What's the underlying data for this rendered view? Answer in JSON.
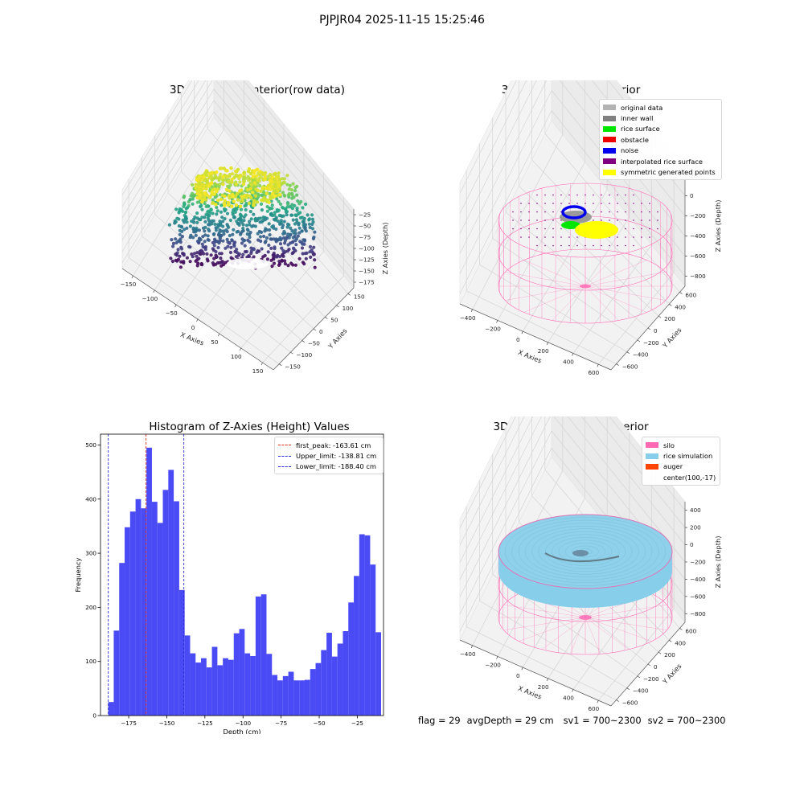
{
  "suptitle": "PJPJR04 2025-11-15 15:25:46",
  "footer": {
    "flag": "flag = 29",
    "avg_depth": "avgDepth = 29 cm",
    "sv1": "sv1 = 700~2300",
    "sv2": "sv2 = 700~2300"
  },
  "colors": {
    "hist_bar": "#4b4bf6",
    "first_peak": "#e0301e",
    "limit_line": "#2a2ad0",
    "silo": "#ff69b4",
    "rice_sim": "#87ceeb",
    "auger": "#ff4500",
    "rice_surface": "#00e600",
    "noise": "#0000ee",
    "symmetric": "#ffff00",
    "interpolated": "#800080"
  },
  "chart_data": [
    {
      "type": "scatter",
      "title": "3D Plot of Silo Interior(row data)",
      "projection": "3d",
      "xlabel": "X Axies",
      "ylabel": "Y Axies",
      "zlabel": "Z Axies (Depth)",
      "x_ticks": [
        "−150",
        "−100",
        "−50",
        "0",
        "50",
        "100",
        "150"
      ],
      "y_ticks": [
        "−150",
        "−100",
        "−50",
        "0",
        "50",
        "100",
        "150"
      ],
      "z_ticks": [
        "−25",
        "−50",
        "−75",
        "−100",
        "−125",
        "−150",
        "−175"
      ],
      "colormap": "viridis"
    },
    {
      "type": "scatter",
      "title": "3D classify of Silo Interior",
      "projection": "3d",
      "xlabel": "X Axies",
      "ylabel": "Y Axies",
      "zlabel": "Z Axies (Depth)",
      "x_ticks": [
        "−400",
        "−200",
        "0",
        "200",
        "400",
        "600"
      ],
      "y_ticks": [
        "−600",
        "−400",
        "−200",
        "0",
        "200",
        "400",
        "600"
      ],
      "z_ticks": [
        "200",
        "0",
        "−200",
        "−400",
        "−600",
        "−800"
      ],
      "legend": [
        {
          "label": "original data",
          "color": "#b3b3b3"
        },
        {
          "label": "inner wall",
          "color": "#808080"
        },
        {
          "label": "rice surface",
          "color": "#00e600"
        },
        {
          "label": "obstacle",
          "color": "#ee0000"
        },
        {
          "label": "noise",
          "color": "#0000ee"
        },
        {
          "label": "interpolated rice surface",
          "color": "#800080"
        },
        {
          "label": "symmetric generated points",
          "color": "#ffff00"
        }
      ],
      "legend_loc": "upper right"
    },
    {
      "type": "bar",
      "title": "Histogram of Z-Axies (Height) Values",
      "xlabel": "Depth (cm)",
      "ylabel": "Frequency",
      "xlim": [
        -193.5,
        -7.8
      ],
      "ylim": [
        0,
        520
      ],
      "x_ticks": [
        -175,
        -150,
        -125,
        -100,
        -75,
        -50,
        -25
      ],
      "x_tick_labels": [
        "−175",
        "−150",
        "−125",
        "−100",
        "−75",
        "−50",
        "−25"
      ],
      "y_ticks": [
        0,
        100,
        200,
        300,
        400,
        500
      ],
      "bin_start": -188.4,
      "bin_width": 3.58,
      "values": [
        25,
        157,
        282,
        348,
        377,
        400,
        383,
        495,
        395,
        356,
        417,
        454,
        396,
        232,
        148,
        115,
        98,
        106,
        89,
        127,
        93,
        106,
        103,
        152,
        160,
        115,
        110,
        220,
        224,
        114,
        75,
        65,
        73,
        81,
        65,
        65,
        66,
        86,
        97,
        121,
        153,
        109,
        133,
        156,
        209,
        258,
        335,
        333,
        279,
        154
      ],
      "vlines": [
        {
          "label": "first_peak: -163.61 cm",
          "x": -163.61,
          "color": "#e0301e"
        },
        {
          "label": "Upper_limit: -138.81 cm",
          "x": -138.81,
          "color": "#2a2ad0"
        },
        {
          "label": "Lower_limit: -188.40 cm",
          "x": -188.4,
          "color": "#2a2ad0"
        }
      ],
      "legend_loc": "upper right"
    },
    {
      "type": "area",
      "title": "3D simulation of Silo Interior",
      "projection": "3d",
      "xlabel": "X Axies",
      "ylabel": "Y Axies",
      "zlabel": "Z Axies (Depth)",
      "x_ticks": [
        "−400",
        "−200",
        "0",
        "200",
        "400",
        "600"
      ],
      "y_ticks": [
        "−600",
        "−400",
        "−200",
        "0",
        "200",
        "400",
        "600"
      ],
      "z_ticks": [
        "400",
        "200",
        "0",
        "−200",
        "−400",
        "−600",
        "−800"
      ],
      "legend": [
        {
          "label": "silo",
          "color": "#ff69b4"
        },
        {
          "label": "rice simulation",
          "color": "#87ceeb"
        },
        {
          "label": "auger",
          "color": "#ff4500"
        },
        {
          "label": "center(100,-17)",
          "color": ""
        }
      ],
      "legend_loc": "upper right"
    }
  ]
}
